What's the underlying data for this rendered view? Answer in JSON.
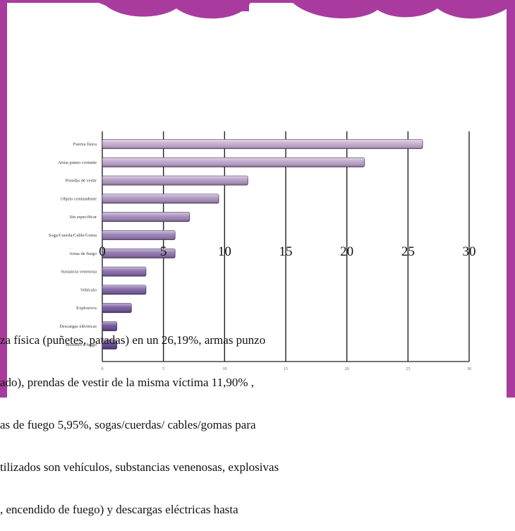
{
  "slide": {
    "border_color": "#a93b9e"
  },
  "chart_data": {
    "type": "bar",
    "orientation": "horizontal",
    "categories": [
      "Fuerza física",
      "Arma punzo cortante",
      "Prendas de vestir",
      "Objeto contundente",
      "Sin especificar",
      "Soga/Cuerda/Cable/Goma",
      "Arma de fuego",
      "Sustancia venenosa",
      "Vehículo",
      "Explosivos",
      "Descargas eléctricas",
      "Incendio o fuego"
    ],
    "values": [
      26.19,
      21.43,
      11.9,
      9.52,
      7.14,
      5.95,
      5.95,
      3.57,
      3.57,
      2.38,
      1.19,
      1.19
    ],
    "xlim": [
      0,
      30
    ],
    "ticks": [
      "0",
      "5",
      "10",
      "15",
      "20",
      "25",
      "30"
    ],
    "grid": true,
    "bar_color_top": "#c3a8cc",
    "bar_color_bottom": "#5a3a8c"
  },
  "caption_lines": [
    "za física (puñetes, patadas) en un 26,19%, armas punzo",
    "ado), prendas de vestir de la misma víctima 11,90% ,",
    "as de fuego 5,95%, sogas/cuerdas/ cables/gomas para",
    "tilizados son vehículos, substancias venenosas, explosivas",
    ", encendido de fuego) y descargas eléctricas hasta"
  ]
}
